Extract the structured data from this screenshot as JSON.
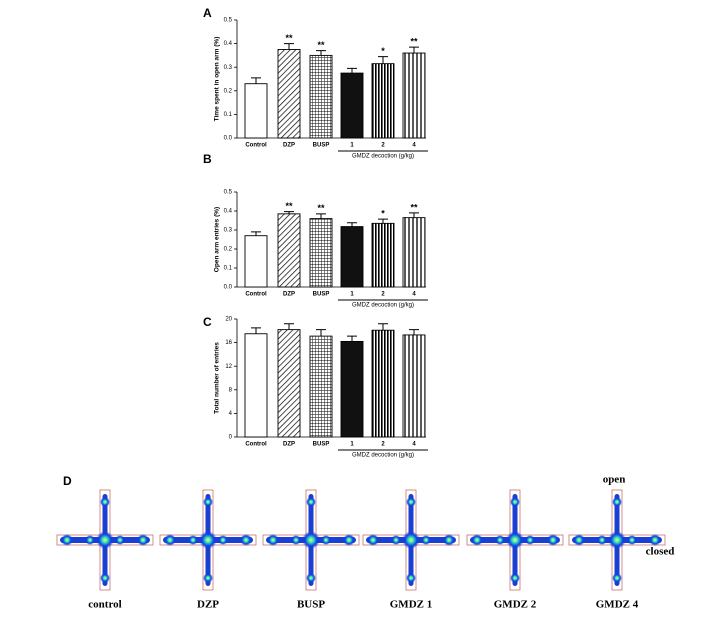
{
  "chart_data": [
    {
      "type": "bar",
      "panel": "A",
      "ylabel": "Time spent in open arm (%)",
      "categories": [
        "Control",
        "DZP",
        "BUSP",
        "1",
        "2",
        "4"
      ],
      "group_label": "GMDZ decoction (g/kg)",
      "values": [
        0.23,
        0.375,
        0.35,
        0.275,
        0.315,
        0.36
      ],
      "errors": [
        0.025,
        0.025,
        0.02,
        0.02,
        0.03,
        0.025
      ],
      "significance": [
        null,
        "**",
        "**",
        null,
        "*",
        "**"
      ],
      "patterns": [
        "none",
        "diagonal",
        "grid",
        "solid",
        "vertical",
        "vertical-light"
      ],
      "ylim": [
        0,
        0.5
      ],
      "yticks": [
        {
          "value": 0,
          "label": "0.0"
        },
        0.1,
        0.2,
        0.3,
        0.4,
        0.5
      ]
    },
    {
      "type": "bar",
      "panel": "B",
      "ylabel": "Open arm entries (%)",
      "categories": [
        "Control",
        "DZP",
        "BUSP",
        "1",
        "2",
        "4"
      ],
      "group_label": "GMDZ decoction (g/kg)",
      "values": [
        0.27,
        0.385,
        0.36,
        0.318,
        0.335,
        0.365
      ],
      "errors": [
        0.02,
        0.012,
        0.025,
        0.02,
        0.022,
        0.025
      ],
      "significance": [
        null,
        "**",
        "**",
        null,
        "*",
        "**"
      ],
      "patterns": [
        "none",
        "diagonal",
        "grid",
        "solid",
        "vertical",
        "vertical-light"
      ],
      "ylim": [
        0,
        0.5
      ],
      "yticks": [
        {
          "value": 0,
          "label": "0.0"
        },
        0.1,
        0.2,
        0.3,
        0.4,
        0.5
      ]
    },
    {
      "type": "bar",
      "panel": "C",
      "ylabel": "Total number of entries",
      "categories": [
        "Control",
        "DZP",
        "BUSP",
        "1",
        "2",
        "4"
      ],
      "group_label": "GMDZ decoction (g/kg)",
      "values": [
        17.5,
        18.2,
        17.1,
        16.2,
        18.1,
        17.3
      ],
      "errors": [
        1,
        1,
        1.1,
        0.9,
        1.1,
        0.9
      ],
      "patterns": [
        "none",
        "diagonal",
        "grid",
        "solid",
        "vertical",
        "vertical-light"
      ],
      "ylim": [
        0,
        20
      ],
      "yticks": [
        0,
        4,
        8,
        12,
        16,
        20
      ]
    }
  ],
  "panel_d": {
    "panel": "D",
    "labels": [
      "control",
      "DZP",
      "BUSP",
      "GMDZ 1",
      "GMDZ 2",
      "GMDZ 4"
    ],
    "open": "open",
    "closed": "closed"
  }
}
